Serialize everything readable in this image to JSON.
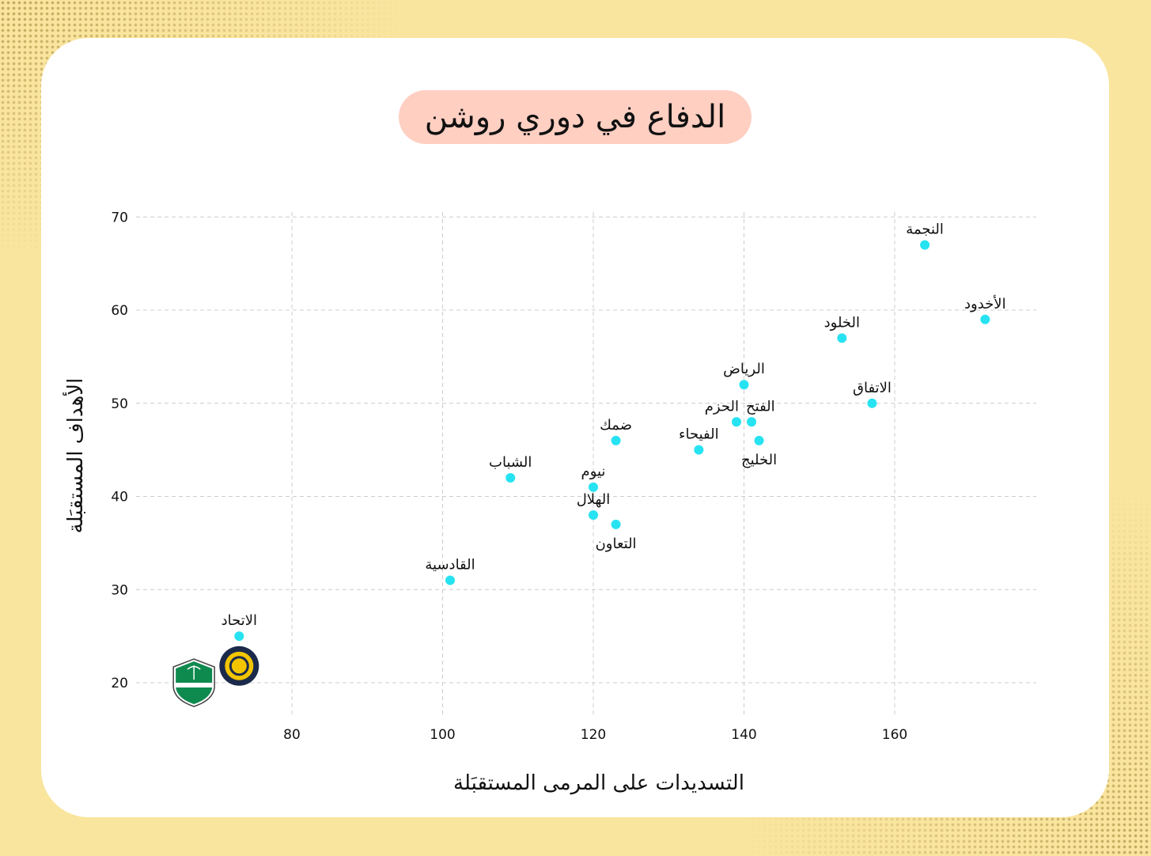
{
  "title": "الدفاع في دوري روشن",
  "colors": {
    "background": "#f9e59e",
    "card": "#ffffff",
    "title_pill": "#ffcfc2",
    "point": "#27e3f2",
    "grid": "#cccccc"
  },
  "chart_data": {
    "type": "scatter",
    "xlabel": "التسديدات على المرمى المستقبَلة",
    "ylabel": "الأهداف المستقبَلة",
    "xlim": [
      65,
      185
    ],
    "ylim": [
      16,
      71
    ],
    "xticks": [
      80,
      100,
      120,
      140,
      160
    ],
    "yticks": [
      20,
      30,
      40,
      50,
      60,
      70
    ],
    "grid": true,
    "points": [
      {
        "label": "النجمة",
        "x": 164,
        "y": 67,
        "pos": "above"
      },
      {
        "label": "الأخدود",
        "x": 172,
        "y": 59,
        "pos": "above"
      },
      {
        "label": "الخلود",
        "x": 153,
        "y": 57,
        "pos": "above"
      },
      {
        "label": "الرياض",
        "x": 140,
        "y": 52,
        "pos": "above"
      },
      {
        "label": "الاتفاق",
        "x": 157,
        "y": 50,
        "pos": "above"
      },
      {
        "label": "الحزم",
        "x": 139,
        "y": 48,
        "pos": "above-left"
      },
      {
        "label": "الفتح",
        "x": 141,
        "y": 48,
        "pos": "above-right"
      },
      {
        "label": "الخليج",
        "x": 142,
        "y": 46,
        "pos": "below"
      },
      {
        "label": "الفيحاء",
        "x": 134,
        "y": 45,
        "pos": "above"
      },
      {
        "label": "ضمك",
        "x": 123,
        "y": 46,
        "pos": "above"
      },
      {
        "label": "الشباب",
        "x": 109,
        "y": 42,
        "pos": "above"
      },
      {
        "label": "نيوم",
        "x": 120,
        "y": 41,
        "pos": "above"
      },
      {
        "label": "الهلال",
        "x": 120,
        "y": 38,
        "pos": "above"
      },
      {
        "label": "التعاون",
        "x": 123,
        "y": 37,
        "pos": "below"
      },
      {
        "label": "القادسية",
        "x": 101,
        "y": 31,
        "pos": "above"
      },
      {
        "label": "الاتحاد",
        "x": 73,
        "y": 25,
        "pos": "above"
      }
    ],
    "logos": [
      {
        "name": "al-ettifaq-style-shield-logo",
        "x": 67,
        "y": 20
      },
      {
        "name": "al-nassr-logo",
        "x": 73,
        "y": 21.8
      }
    ]
  }
}
